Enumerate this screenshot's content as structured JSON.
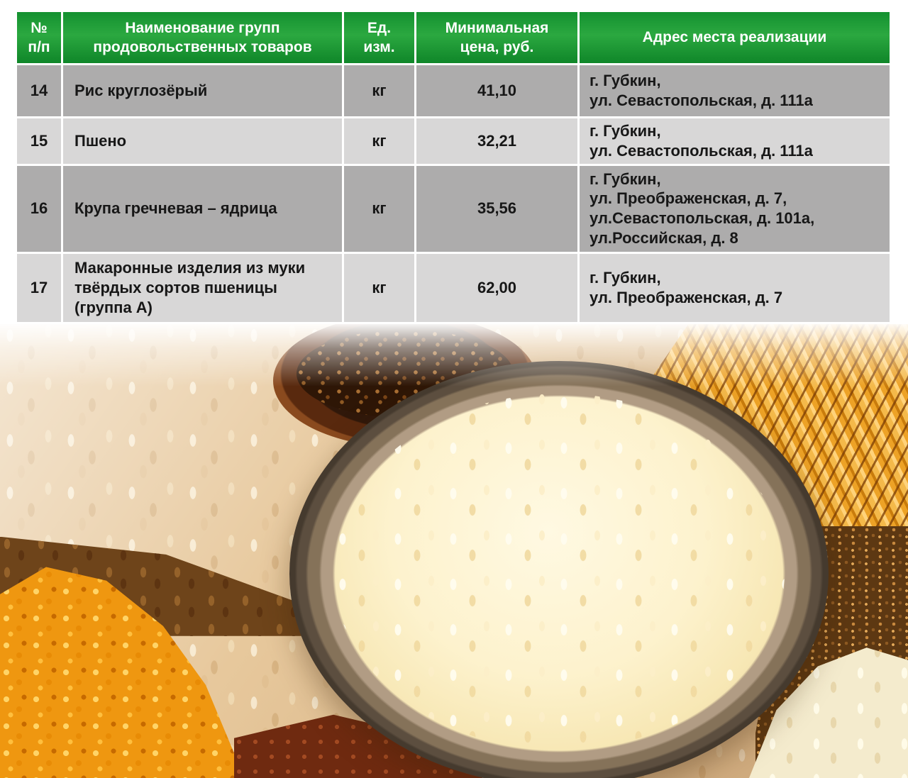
{
  "table": {
    "columns": [
      {
        "key": "num",
        "label": "№\nп/п"
      },
      {
        "key": "name",
        "label": "Наименование групп\nпродовольственных товаров"
      },
      {
        "key": "unit",
        "label": "Ед.\nизм."
      },
      {
        "key": "price",
        "label": "Минимальная\nцена, руб."
      },
      {
        "key": "address",
        "label": "Адрес места реализации"
      }
    ],
    "rows": [
      {
        "num": "14",
        "name": "Рис круглозёрый",
        "unit": "кг",
        "price": "41,10",
        "address": "г. Губкин,\nул. Севастопольская, д. 111а"
      },
      {
        "num": "15",
        "name": "Пшено",
        "unit": "кг",
        "price": "32,21",
        "address": "г. Губкин,\nул. Севастопольская, д. 111а"
      },
      {
        "num": "16",
        "name": "Крупа гречневая – ядрица",
        "unit": "кг",
        "price": "35,56",
        "address": "г. Губкин,\nул. Преображенская, д. 7,\nул.Севастопольская, д. 101а,\nул.Российская, д. 8"
      },
      {
        "num": "17",
        "name": "Макаронные изделия из муки твёрдых сортов пшеницы (группа А)",
        "unit": "кг",
        "price": "62,00",
        "address": "г. Губкин,\nул. Преображенская, д. 7"
      }
    ]
  },
  "colors": {
    "header_green_top": "#149130",
    "header_green_mid": "#2ba840",
    "header_green_bottom": "#0f8629",
    "header_text": "#ffffff",
    "row_dark": "#adacac",
    "row_light": "#d8d7d7",
    "cell_text": "#171717",
    "page_background": "#ffffff"
  }
}
